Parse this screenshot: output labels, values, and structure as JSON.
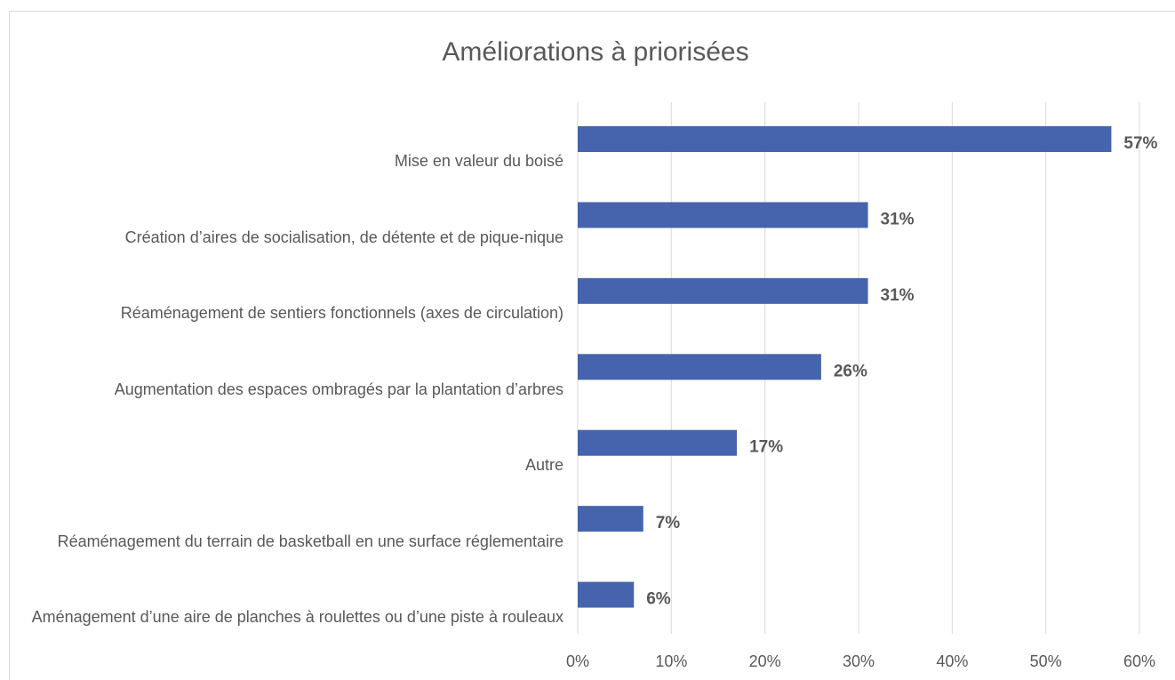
{
  "chart_data": {
    "type": "bar",
    "orientation": "horizontal",
    "title": "Améliorations à priorisées",
    "categories": [
      "Mise en valeur du boisé",
      "Création d’aires de socialisation, de détente et de pique-nique",
      "Réaménagement de sentiers fonctionnels (axes de circulation)",
      "Augmentation des espaces ombragés par la plantation d’arbres",
      "Autre",
      "Réaménagement du terrain de basketball en une surface réglementaire",
      "Aménagement d’une aire de planches à roulettes ou d’une piste à rouleaux"
    ],
    "values": [
      57,
      31,
      31,
      26,
      17,
      7,
      6
    ],
    "value_labels": [
      "57%",
      "31%",
      "31%",
      "26%",
      "17%",
      "7%",
      "6%"
    ],
    "color": "#4564ad",
    "xlim": [
      0,
      60
    ],
    "xticks": [
      {
        "value": 0,
        "label": "0%"
      },
      {
        "value": 10,
        "label": "10%"
      },
      {
        "value": 20,
        "label": "20%"
      },
      {
        "value": 30,
        "label": "30%"
      },
      {
        "value": 40,
        "label": "40%"
      },
      {
        "value": 50,
        "label": "50%"
      },
      {
        "value": 60,
        "label": "60%"
      }
    ],
    "grid": true
  }
}
